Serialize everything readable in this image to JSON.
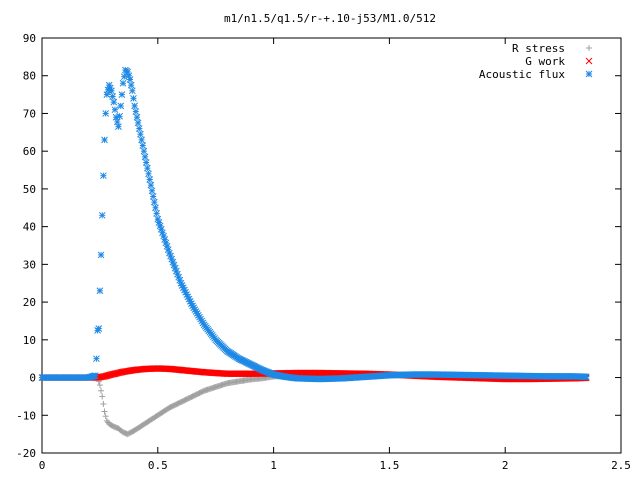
{
  "chart_data": {
    "type": "scatter",
    "title": "m1/n1.5/q1.5/r-+.10-j53/M1.0/512",
    "xlabel": "",
    "ylabel": "",
    "xlim": [
      0,
      2.5
    ],
    "ylim": [
      -20,
      90
    ],
    "x_ticks": [
      "0",
      "0.5",
      "1",
      "1.5",
      "2",
      "2.5"
    ],
    "y_ticks": [
      "-20",
      "-10",
      "0",
      "10",
      "20",
      "30",
      "40",
      "50",
      "60",
      "70",
      "80",
      "90"
    ],
    "grid": false,
    "legend_position": "top-right",
    "series": [
      {
        "name": "R stress",
        "marker": "+",
        "color": "#a0a0a0",
        "points": [
          [
            0.0,
            0.0
          ],
          [
            0.1,
            0.0
          ],
          [
            0.2,
            0.0
          ],
          [
            0.24,
            0.0
          ],
          [
            0.25,
            -2
          ],
          [
            0.26,
            -5
          ],
          [
            0.27,
            -9
          ],
          [
            0.28,
            -11.5
          ],
          [
            0.29,
            -12.3
          ],
          [
            0.31,
            -13
          ],
          [
            0.33,
            -13.5
          ],
          [
            0.35,
            -14.5
          ],
          [
            0.37,
            -15
          ],
          [
            0.4,
            -14
          ],
          [
            0.45,
            -12
          ],
          [
            0.5,
            -10
          ],
          [
            0.55,
            -8
          ],
          [
            0.6,
            -6.5
          ],
          [
            0.65,
            -5
          ],
          [
            0.7,
            -3.5
          ],
          [
            0.75,
            -2.5
          ],
          [
            0.8,
            -1.5
          ],
          [
            0.85,
            -1
          ],
          [
            0.9,
            -0.5
          ],
          [
            0.95,
            -0.2
          ],
          [
            1.0,
            0.3
          ],
          [
            1.1,
            0.6
          ],
          [
            1.2,
            0.8
          ],
          [
            1.3,
            0.9
          ],
          [
            1.4,
            0.9
          ],
          [
            1.5,
            0.8
          ],
          [
            1.6,
            0.7
          ],
          [
            1.7,
            0.6
          ],
          [
            1.8,
            0.6
          ],
          [
            1.9,
            0.5
          ],
          [
            2.0,
            0.5
          ],
          [
            2.1,
            0.4
          ],
          [
            2.2,
            0.4
          ],
          [
            2.3,
            0.3
          ],
          [
            2.35,
            0.3
          ]
        ]
      },
      {
        "name": "G work",
        "marker": "x",
        "color": "#ff0000",
        "points": [
          [
            0.0,
            0.0
          ],
          [
            0.1,
            0.0
          ],
          [
            0.2,
            0.0
          ],
          [
            0.24,
            0.0
          ],
          [
            0.27,
            0.3
          ],
          [
            0.3,
            0.8
          ],
          [
            0.35,
            1.5
          ],
          [
            0.4,
            2.0
          ],
          [
            0.45,
            2.3
          ],
          [
            0.5,
            2.4
          ],
          [
            0.55,
            2.3
          ],
          [
            0.6,
            2.0
          ],
          [
            0.65,
            1.7
          ],
          [
            0.7,
            1.4
          ],
          [
            0.75,
            1.2
          ],
          [
            0.8,
            1.0
          ],
          [
            0.85,
            1.0
          ],
          [
            0.9,
            1.0
          ],
          [
            1.0,
            1.1
          ],
          [
            1.1,
            1.2
          ],
          [
            1.2,
            1.2
          ],
          [
            1.3,
            1.1
          ],
          [
            1.4,
            1.0
          ],
          [
            1.5,
            0.8
          ],
          [
            1.6,
            0.5
          ],
          [
            1.7,
            0.2
          ],
          [
            1.8,
            0.0
          ],
          [
            1.9,
            -0.2
          ],
          [
            2.0,
            -0.4
          ],
          [
            2.1,
            -0.4
          ],
          [
            2.2,
            -0.3
          ],
          [
            2.3,
            -0.2
          ],
          [
            2.35,
            -0.1
          ]
        ]
      },
      {
        "name": "Acoustic flux",
        "marker": "*",
        "color": "#1e88e5",
        "points": [
          [
            0.0,
            0.0
          ],
          [
            0.1,
            0.0
          ],
          [
            0.2,
            0.0
          ],
          [
            0.23,
            0.5
          ],
          [
            0.235,
            5
          ],
          [
            0.24,
            12.5
          ],
          [
            0.245,
            13
          ],
          [
            0.25,
            23
          ],
          [
            0.255,
            32.5
          ],
          [
            0.26,
            43
          ],
          [
            0.265,
            53.5
          ],
          [
            0.27,
            63
          ],
          [
            0.275,
            70
          ],
          [
            0.28,
            75
          ],
          [
            0.29,
            77.5
          ],
          [
            0.3,
            76
          ],
          [
            0.31,
            73
          ],
          [
            0.32,
            69
          ],
          [
            0.33,
            66.5
          ],
          [
            0.34,
            72
          ],
          [
            0.35,
            78
          ],
          [
            0.36,
            81.5
          ],
          [
            0.37,
            81
          ],
          [
            0.38,
            79
          ],
          [
            0.39,
            76
          ],
          [
            0.4,
            72
          ],
          [
            0.42,
            66
          ],
          [
            0.45,
            57
          ],
          [
            0.48,
            48
          ],
          [
            0.5,
            42
          ],
          [
            0.55,
            33
          ],
          [
            0.6,
            25
          ],
          [
            0.65,
            19
          ],
          [
            0.7,
            14
          ],
          [
            0.75,
            10
          ],
          [
            0.8,
            7
          ],
          [
            0.85,
            5
          ],
          [
            0.9,
            3.5
          ],
          [
            0.95,
            2
          ],
          [
            1.0,
            0.8
          ],
          [
            1.05,
            0.2
          ],
          [
            1.1,
            -0.2
          ],
          [
            1.2,
            -0.4
          ],
          [
            1.3,
            -0.2
          ],
          [
            1.4,
            0.2
          ],
          [
            1.5,
            0.6
          ],
          [
            1.6,
            0.8
          ],
          [
            1.7,
            0.8
          ],
          [
            1.8,
            0.7
          ],
          [
            1.9,
            0.6
          ],
          [
            2.0,
            0.5
          ],
          [
            2.1,
            0.4
          ],
          [
            2.2,
            0.3
          ],
          [
            2.3,
            0.3
          ],
          [
            2.35,
            0.2
          ]
        ]
      }
    ]
  }
}
